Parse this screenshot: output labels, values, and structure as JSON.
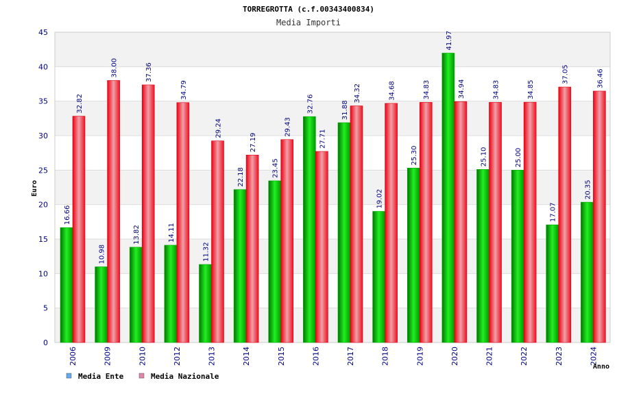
{
  "chart_data": {
    "type": "bar",
    "title": "TORREGROTTA (c.f.00343400834)",
    "subtitle": "Media Importi",
    "xlabel": "Anno",
    "ylabel": "Euro",
    "ylim": [
      0,
      45
    ],
    "yticks": [
      0,
      5,
      10,
      15,
      20,
      25,
      30,
      35,
      40,
      45
    ],
    "grid": true,
    "legend_position": "bottom-left",
    "categories": [
      "2006",
      "2009",
      "2010",
      "2012",
      "2013",
      "2014",
      "2015",
      "2016",
      "2017",
      "2018",
      "2019",
      "2020",
      "2021",
      "2022",
      "2023",
      "2024"
    ],
    "series": [
      {
        "name": "Media Ente",
        "color": "#00cc00",
        "legend_color": "#66aaee",
        "values": [
          16.66,
          10.98,
          13.82,
          14.11,
          11.32,
          22.18,
          23.45,
          32.76,
          31.88,
          19.02,
          25.3,
          41.97,
          25.1,
          25.0,
          17.07,
          20.35
        ],
        "labels": [
          "16.66",
          "10.98",
          "13.82",
          "14.11",
          "11.32",
          "22.18",
          "23.45",
          "32.76",
          "31.88",
          "19.02",
          "25.30",
          "41.97",
          "25.10",
          "25.00",
          "17.07",
          "20.35"
        ]
      },
      {
        "name": "Media Nazionale",
        "color": "#ee2233",
        "legend_color": "#dd88aa",
        "values": [
          32.82,
          38.0,
          37.36,
          34.79,
          29.24,
          27.19,
          29.43,
          27.71,
          34.32,
          34.68,
          34.83,
          34.94,
          34.83,
          34.85,
          37.05,
          36.46
        ],
        "labels": [
          "32.82",
          "38.00",
          "37.36",
          "34.79",
          "29.24",
          "27.19",
          "29.43",
          "27.71",
          "34.32",
          "34.68",
          "34.83",
          "34.94",
          "34.83",
          "34.85",
          "37.05",
          "36.46"
        ]
      }
    ]
  }
}
